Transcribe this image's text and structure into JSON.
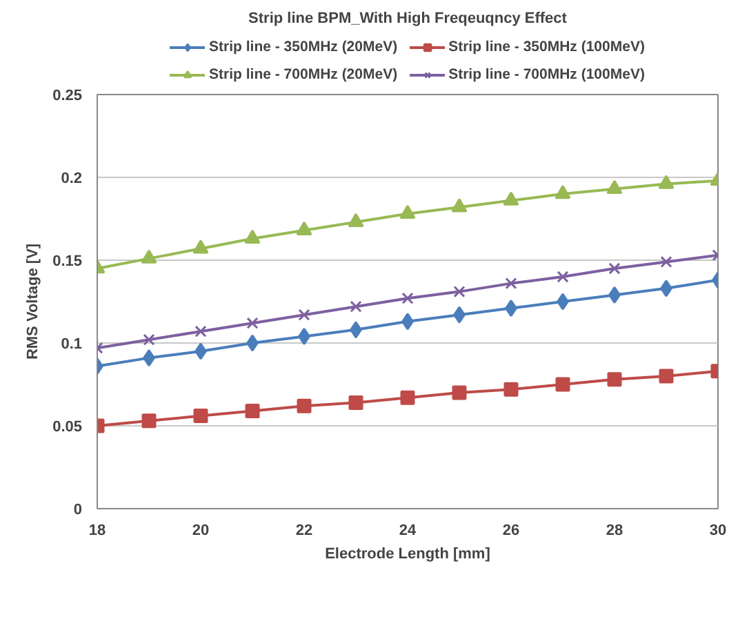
{
  "chart_data": {
    "type": "line",
    "title": "Strip line BPM_With High Freqeuqncy Effect",
    "xlabel": "Electrode Length [mm]",
    "ylabel": "RMS Voltage [V]",
    "x": [
      18,
      19,
      20,
      21,
      22,
      23,
      24,
      25,
      26,
      27,
      28,
      29,
      30
    ],
    "series": [
      {
        "name": "Strip line - 350MHz (20MeV)",
        "color": "#4a7ebb",
        "marker": "diamond",
        "values": [
          0.086,
          0.091,
          0.095,
          0.1,
          0.104,
          0.108,
          0.113,
          0.117,
          0.121,
          0.125,
          0.129,
          0.133,
          0.138
        ]
      },
      {
        "name": "Strip line - 350MHz (100MeV)",
        "color": "#be4b48",
        "marker": "square",
        "values": [
          0.05,
          0.053,
          0.056,
          0.059,
          0.062,
          0.064,
          0.067,
          0.07,
          0.072,
          0.075,
          0.078,
          0.08,
          0.083
        ]
      },
      {
        "name": "Strip line - 700MHz (20MeV)",
        "color": "#98b954",
        "marker": "triangle",
        "values": [
          0.145,
          0.151,
          0.157,
          0.163,
          0.168,
          0.173,
          0.178,
          0.182,
          0.186,
          0.19,
          0.193,
          0.196,
          0.198
        ]
      },
      {
        "name": "Strip line - 700MHz (100MeV)",
        "color": "#7d60a0",
        "marker": "cross",
        "values": [
          0.097,
          0.102,
          0.107,
          0.112,
          0.117,
          0.122,
          0.127,
          0.131,
          0.136,
          0.14,
          0.145,
          0.149,
          0.153
        ]
      }
    ],
    "xlim": [
      18,
      30
    ],
    "xticks": [
      18,
      20,
      22,
      24,
      26,
      28,
      30
    ],
    "ylim": [
      0,
      0.25
    ],
    "yticks": [
      0,
      0.05,
      0.1,
      0.15,
      0.2,
      0.25
    ],
    "grid": "y",
    "legend": "top",
    "line_style": "solid"
  }
}
